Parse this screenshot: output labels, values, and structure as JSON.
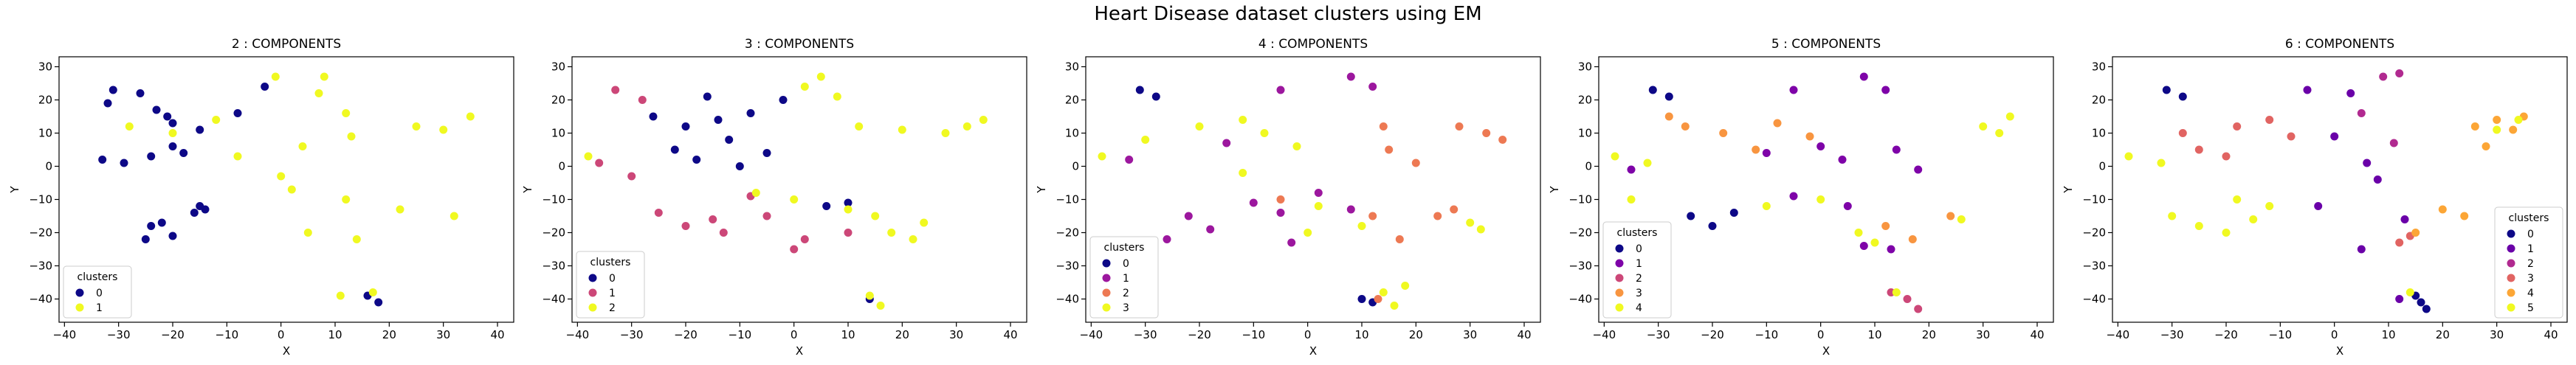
{
  "figure": {
    "title": "Heart Disease dataset clusters using EM"
  },
  "chart_data": [
    {
      "type": "scatter",
      "title": "2 : COMPONENTS",
      "xlabel": "X",
      "ylabel": "Y",
      "xlim": [
        -41,
        43
      ],
      "ylim": [
        -47,
        33
      ],
      "xticks": [
        -40,
        -30,
        -20,
        -10,
        0,
        10,
        20,
        30,
        40
      ],
      "yticks": [
        -40,
        -30,
        -20,
        -10,
        0,
        10,
        20,
        30
      ],
      "grid": false,
      "legend": {
        "title": "clusters",
        "position": "lower-left",
        "labels": [
          "0",
          "1"
        ]
      },
      "colors": [
        "#0d0887",
        "#f0f921"
      ],
      "labels": [
        0,
        0,
        0,
        0,
        0,
        0,
        0,
        0,
        0,
        0,
        0,
        0,
        0,
        0,
        0,
        0,
        0,
        0,
        0,
        0,
        0,
        0,
        0,
        1,
        1,
        1,
        1,
        1,
        1,
        1,
        1,
        1,
        1,
        1,
        1,
        1,
        1,
        1,
        1,
        1,
        1,
        1,
        1,
        1,
        1
      ],
      "x": [
        -31,
        -26,
        -32,
        -23,
        -20,
        -15,
        -21,
        -8,
        -3,
        -33,
        -29,
        -24,
        -20,
        -18,
        -24,
        -20,
        -16,
        -14,
        -25,
        -15,
        -22,
        16,
        18,
        -28,
        -20,
        -12,
        -1,
        8,
        7,
        12,
        -8,
        0,
        4,
        13,
        25,
        30,
        35,
        2,
        12,
        22,
        32,
        5,
        14,
        11,
        17
      ],
      "y": [
        23,
        22,
        19,
        17,
        13,
        11,
        15,
        16,
        24,
        2,
        1,
        3,
        6,
        4,
        -18,
        -21,
        -14,
        -13,
        -22,
        -12,
        -17,
        -39,
        -41,
        12,
        10,
        14,
        27,
        27,
        22,
        16,
        3,
        -3,
        6,
        9,
        12,
        11,
        15,
        -7,
        -10,
        -13,
        -15,
        -20,
        -22,
        -39,
        -38
      ]
    },
    {
      "type": "scatter",
      "title": "3 : COMPONENTS",
      "xlabel": "X",
      "ylabel": "Y",
      "xlim": [
        -41,
        43
      ],
      "ylim": [
        -47,
        33
      ],
      "xticks": [
        -40,
        -30,
        -20,
        -10,
        0,
        10,
        20,
        30,
        40
      ],
      "yticks": [
        -40,
        -30,
        -20,
        -10,
        0,
        10,
        20,
        30
      ],
      "grid": false,
      "legend": {
        "title": "clusters",
        "position": "lower-left",
        "labels": [
          "0",
          "1",
          "2"
        ]
      },
      "colors": [
        "#0d0887",
        "#cc4778",
        "#f0f921"
      ],
      "labels": [
        0,
        0,
        0,
        0,
        0,
        0,
        0,
        0,
        0,
        0,
        0,
        0,
        0,
        0,
        1,
        1,
        1,
        1,
        1,
        1,
        1,
        1,
        1,
        1,
        1,
        1,
        1,
        2,
        2,
        2,
        2,
        2,
        2,
        2,
        2,
        2,
        2,
        2,
        2,
        2,
        2,
        2,
        2,
        2,
        2
      ],
      "x": [
        -26,
        -20,
        -14,
        -8,
        -22,
        -18,
        -12,
        -5,
        -2,
        -16,
        -10,
        6,
        10,
        14,
        -33,
        -28,
        -36,
        -30,
        -25,
        -20,
        -15,
        -13,
        -8,
        -5,
        0,
        2,
        10,
        -38,
        5,
        2,
        8,
        12,
        20,
        28,
        35,
        32,
        -7,
        0,
        10,
        15,
        24,
        18,
        22,
        14,
        16
      ],
      "y": [
        15,
        12,
        14,
        16,
        5,
        2,
        8,
        4,
        20,
        21,
        0,
        -12,
        -11,
        -40,
        23,
        20,
        1,
        -3,
        -14,
        -18,
        -16,
        -20,
        -9,
        -15,
        -25,
        -22,
        -20,
        3,
        27,
        24,
        21,
        12,
        11,
        10,
        14,
        12,
        -8,
        -10,
        -13,
        -15,
        -17,
        -20,
        -22,
        -39,
        -42
      ]
    },
    {
      "type": "scatter",
      "title": "4 : COMPONENTS",
      "xlabel": "X",
      "ylabel": "Y",
      "xlim": [
        -41,
        43
      ],
      "ylim": [
        -47,
        33
      ],
      "xticks": [
        -40,
        -30,
        -20,
        -10,
        0,
        10,
        20,
        30,
        40
      ],
      "yticks": [
        -40,
        -30,
        -20,
        -10,
        0,
        10,
        20,
        30
      ],
      "grid": false,
      "legend": {
        "title": "clusters",
        "position": "lower-left",
        "labels": [
          "0",
          "1",
          "2",
          "3"
        ]
      },
      "colors": [
        "#0d0887",
        "#9c179e",
        "#ed7953",
        "#f0f921"
      ],
      "labels": [
        0,
        0,
        0,
        0,
        1,
        1,
        1,
        1,
        1,
        1,
        1,
        1,
        1,
        1,
        1,
        1,
        1,
        2,
        2,
        2,
        2,
        2,
        2,
        2,
        2,
        2,
        2,
        2,
        2,
        3,
        3,
        3,
        3,
        3,
        3,
        3,
        3,
        3,
        3,
        3,
        3,
        3,
        3,
        3
      ],
      "x": [
        -31,
        -28,
        10,
        12,
        -5,
        8,
        12,
        -15,
        -33,
        -22,
        -18,
        -26,
        -10,
        -5,
        2,
        -3,
        8,
        14,
        15,
        20,
        28,
        33,
        36,
        -5,
        12,
        24,
        27,
        17,
        13,
        -38,
        -30,
        -20,
        -12,
        -8,
        -2,
        -12,
        2,
        0,
        10,
        30,
        32,
        14,
        16,
        18
      ],
      "y": [
        23,
        21,
        -40,
        -41,
        23,
        27,
        24,
        7,
        2,
        -15,
        -19,
        -22,
        -11,
        -14,
        -8,
        -23,
        -13,
        12,
        5,
        1,
        12,
        10,
        8,
        -10,
        -15,
        -15,
        -13,
        -22,
        -40,
        3,
        8,
        12,
        14,
        10,
        6,
        -2,
        -12,
        -20,
        -18,
        -17,
        -19,
        -38,
        -42,
        -36
      ]
    },
    {
      "type": "scatter",
      "title": "5 : COMPONENTS",
      "xlabel": "X",
      "ylabel": "Y",
      "xlim": [
        -41,
        43
      ],
      "ylim": [
        -47,
        33
      ],
      "xticks": [
        -40,
        -30,
        -20,
        -10,
        0,
        10,
        20,
        30,
        40
      ],
      "yticks": [
        -40,
        -30,
        -20,
        -10,
        0,
        10,
        20,
        30
      ],
      "grid": false,
      "legend": {
        "title": "clusters",
        "position": "lower-left",
        "labels": [
          "0",
          "1",
          "2",
          "3",
          "4"
        ]
      },
      "colors": [
        "#0d0887",
        "#7e03a8",
        "#cc4778",
        "#f89540",
        "#f0f921"
      ],
      "labels": [
        0,
        0,
        0,
        0,
        0,
        1,
        1,
        1,
        1,
        1,
        1,
        1,
        1,
        1,
        1,
        1,
        1,
        1,
        2,
        2,
        2,
        3,
        3,
        3,
        3,
        3,
        3,
        3,
        3,
        3,
        4,
        4,
        4,
        4,
        4,
        4,
        4,
        4,
        4,
        4,
        4,
        4
      ],
      "x": [
        -31,
        -28,
        -20,
        -24,
        -16,
        -35,
        -5,
        8,
        12,
        -10,
        0,
        4,
        14,
        18,
        -5,
        5,
        8,
        13,
        16,
        18,
        13,
        -28,
        -25,
        -18,
        -12,
        -8,
        -2,
        24,
        12,
        17,
        -38,
        -32,
        -35,
        -10,
        0,
        7,
        30,
        33,
        35,
        26,
        10,
        14
      ],
      "y": [
        23,
        21,
        -18,
        -15,
        -14,
        -1,
        23,
        27,
        23,
        4,
        6,
        2,
        5,
        -1,
        -9,
        -12,
        -24,
        -25,
        -40,
        -43,
        -38,
        15,
        12,
        10,
        5,
        13,
        9,
        -15,
        -18,
        -22,
        3,
        1,
        -10,
        -12,
        -10,
        -20,
        12,
        10,
        15,
        -16,
        -23,
        -38
      ]
    },
    {
      "type": "scatter",
      "title": "6 : COMPONENTS",
      "xlabel": "X",
      "ylabel": "Y",
      "xlim": [
        -41,
        43
      ],
      "ylim": [
        -47,
        33
      ],
      "xticks": [
        -40,
        -30,
        -20,
        -10,
        0,
        10,
        20,
        30,
        40
      ],
      "yticks": [
        -40,
        -30,
        -20,
        -10,
        0,
        10,
        20,
        30
      ],
      "grid": false,
      "legend": {
        "title": "clusters",
        "position": "lower-right",
        "labels": [
          "0",
          "1",
          "2",
          "3",
          "4",
          "5"
        ]
      },
      "colors": [
        "#0d0887",
        "#6a00a8",
        "#b12a90",
        "#e16462",
        "#fca636",
        "#f0f921"
      ],
      "labels": [
        0,
        0,
        0,
        0,
        0,
        1,
        1,
        1,
        1,
        1,
        1,
        1,
        1,
        1,
        2,
        2,
        2,
        2,
        3,
        3,
        3,
        3,
        3,
        3,
        3,
        3,
        4,
        4,
        4,
        4,
        4,
        4,
        4,
        4,
        5,
        5,
        5,
        5,
        5,
        5,
        5,
        5,
        5,
        5,
        5
      ],
      "x": [
        -31,
        -28,
        16,
        15,
        17,
        -5,
        3,
        0,
        6,
        8,
        -3,
        5,
        13,
        12,
        9,
        12,
        5,
        11,
        -28,
        -25,
        -18,
        -12,
        -8,
        -20,
        12,
        14,
        26,
        30,
        33,
        35,
        28,
        24,
        20,
        15,
        -38,
        -32,
        -30,
        -25,
        -20,
        -15,
        -12,
        -18,
        30,
        34,
        14
      ],
      "y": [
        23,
        21,
        -41,
        -39,
        -43,
        23,
        22,
        9,
        1,
        -4,
        -12,
        -25,
        -16,
        -40,
        27,
        28,
        16,
        7,
        10,
        5,
        12,
        14,
        9,
        3,
        -23,
        -21,
        12,
        14,
        11,
        15,
        6,
        -15,
        -13,
        -20,
        3,
        1,
        -15,
        -18,
        -20,
        -16,
        -12,
        -10,
        11,
        14,
        -38
      ]
    }
  ]
}
